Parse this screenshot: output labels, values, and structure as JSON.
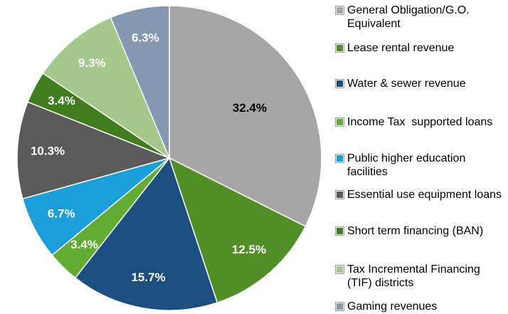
{
  "chart_data": {
    "type": "pie",
    "categories": [
      "General Obligation/G.O. Equivalent",
      "Lease rental revenue",
      "Water & sewer revenue",
      "Income Tax  supported loans",
      "Public higher education facilities",
      "Essential use equipment loans",
      "Short term financing (BAN)",
      "Tax Incremental Financing (TIF) districts",
      "Gaming revenues"
    ],
    "values": [
      32.4,
      12.5,
      15.7,
      3.4,
      6.7,
      10.3,
      3.4,
      9.3,
      6.3
    ],
    "value_labels": [
      "32.4%",
      "12.5%",
      "15.7%",
      "3.4%",
      "6.7%",
      "10.3%",
      "3.4%",
      "9.3%",
      "6.3%"
    ],
    "colors": [
      "#a6a6a6",
      "#4f8f26",
      "#1c4f7f",
      "#62ac34",
      "#1a9fdb",
      "#5a5a5a",
      "#3f7d1f",
      "#a4c88c",
      "#8597b1"
    ],
    "label_colors": [
      "#000000",
      "#ffffff",
      "#ffffff",
      "#ffffff",
      "#ffffff",
      "#ffffff",
      "#ffffff",
      "#ffffff",
      "#ffffff"
    ],
    "legend": "right"
  }
}
